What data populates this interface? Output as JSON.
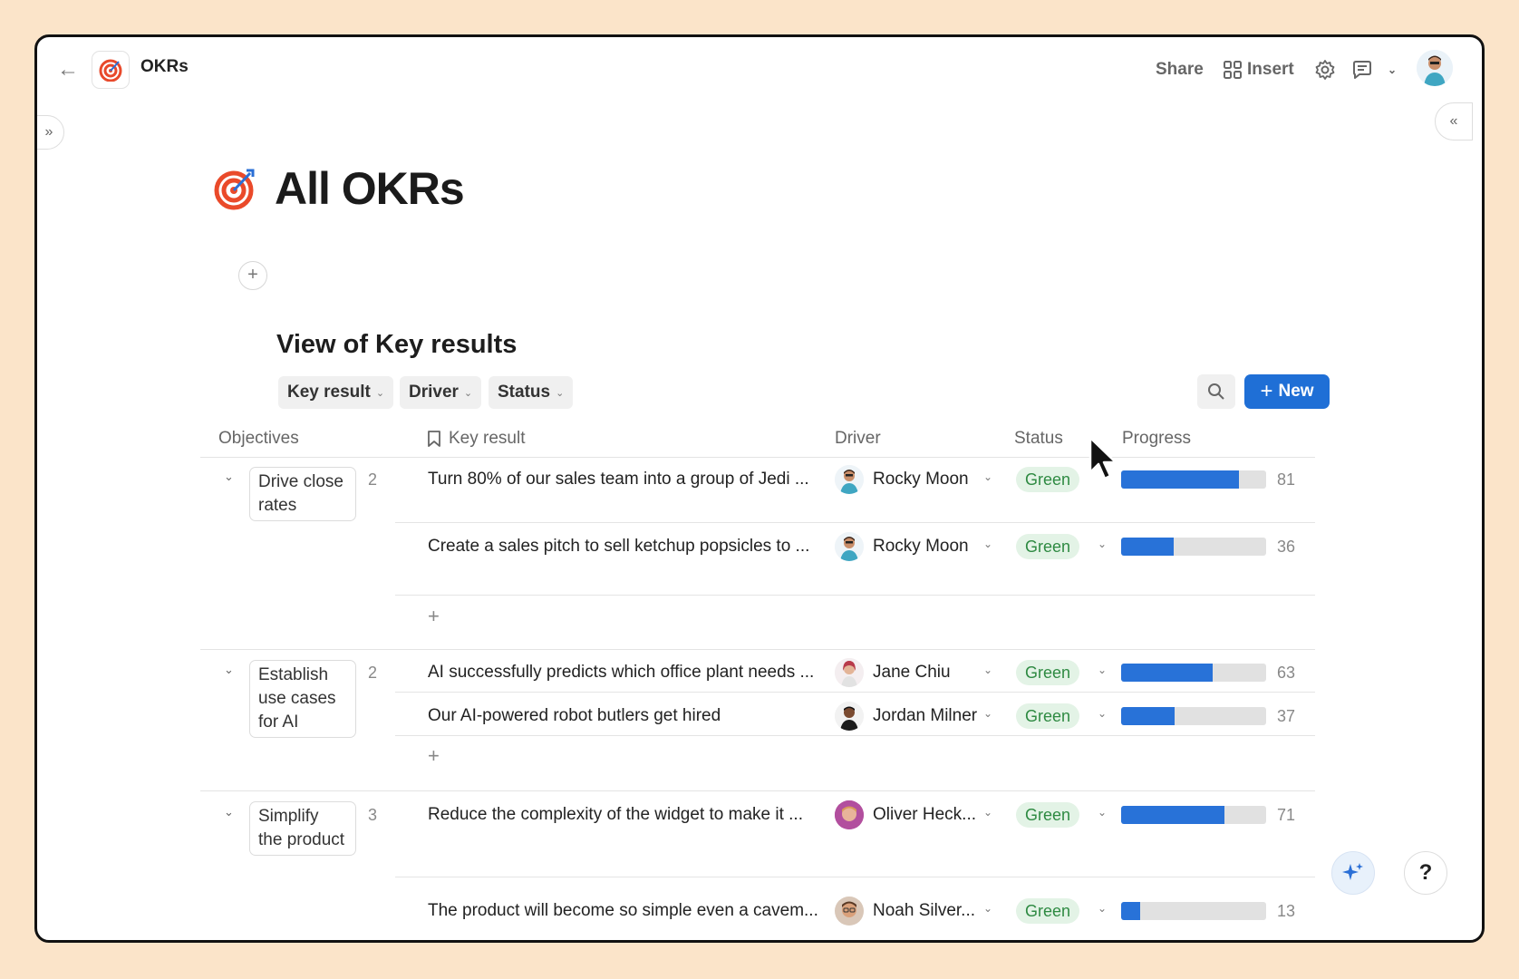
{
  "app": {
    "name": "OKRs"
  },
  "topbar": {
    "share_label": "Share",
    "insert_label": "Insert"
  },
  "page": {
    "title": "All OKRs"
  },
  "view": {
    "title": "View of Key results",
    "filters": [
      "Key result",
      "Driver",
      "Status"
    ],
    "new_label": "New"
  },
  "table": {
    "headers": {
      "objectives": "Objectives",
      "key_result": "Key result",
      "driver": "Driver",
      "status": "Status",
      "progress": "Progress"
    },
    "groups": [
      {
        "objective": "Drive close rates",
        "count": "2",
        "rows": [
          {
            "key_result": "Turn 80% of our sales team into a group of Jedi ...",
            "driver": "Rocky Moon",
            "status": "Green",
            "progress": 81
          },
          {
            "key_result": "Create a sales pitch to sell ketchup popsicles to ...",
            "driver": "Rocky Moon",
            "status": "Green",
            "progress": 36
          }
        ]
      },
      {
        "objective": "Establish use cases for AI",
        "count": "2",
        "rows": [
          {
            "key_result": "AI successfully predicts which office plant needs ...",
            "driver": "Jane Chiu",
            "status": "Green",
            "progress": 63
          },
          {
            "key_result": "Our AI-powered robot butlers get hired",
            "driver": "Jordan Milner",
            "status": "Green",
            "progress": 37
          }
        ]
      },
      {
        "objective": "Simplify the product",
        "count": "3",
        "rows": [
          {
            "key_result": "Reduce the complexity of the widget to make it ...",
            "driver": "Oliver Heck...",
            "status": "Green",
            "progress": 71
          },
          {
            "key_result": "The product will become so simple even a cavem...",
            "driver": "Noah Silver...",
            "status": "Green",
            "progress": 13
          }
        ]
      }
    ]
  },
  "colors": {
    "accent": "#1f6fd6",
    "progress_fill": "#2872d8",
    "status_green_bg": "#e3f3e6",
    "status_green_text": "#2e8a42",
    "background": "#fbe4c9"
  },
  "icons": [
    "back-arrow-icon",
    "target-icon",
    "insert-grid-icon",
    "gear-icon",
    "comment-icon",
    "chevron-down-icon",
    "search-icon",
    "plus-icon",
    "bookmark-icon",
    "sparkle-icon",
    "help-icon",
    "expand-sidebar-icon",
    "collapse-panel-icon"
  ]
}
